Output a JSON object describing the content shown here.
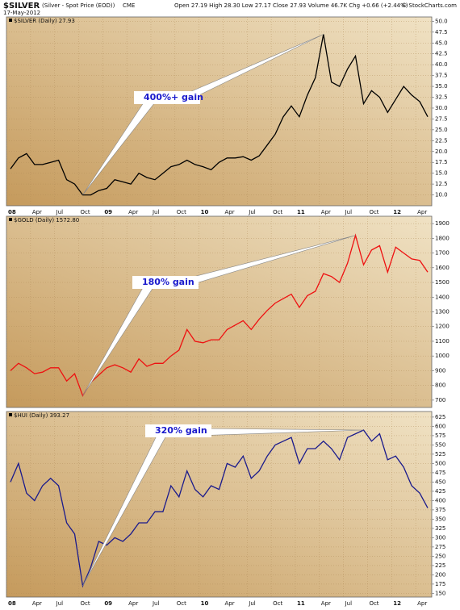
{
  "header": {
    "symbol": "$SILVER",
    "description": "(Silver - Spot Price (EOD))",
    "exchange": "CME",
    "date": "17-May-2012",
    "quote": "Open 27.19 High 28.30 Low 27.17 Close 27.93 Volume 46.7K Chg +0.66 (+2.44%)",
    "credit": "© StockCharts.com"
  },
  "chart_data": [
    {
      "type": "line",
      "title": "$SILVER (Daily) 27.93",
      "color": "#000000",
      "annotation": "400%+ gain",
      "grid": true,
      "categories": [
        "08",
        null,
        null,
        "Apr",
        null,
        null,
        "Jul",
        null,
        null,
        "Oct",
        null,
        null,
        "09",
        null,
        null,
        "Apr",
        null,
        null,
        "Jul",
        null,
        null,
        "Oct",
        null,
        null,
        "10",
        null,
        null,
        "Apr",
        null,
        null,
        "Jul",
        null,
        null,
        "Oct",
        null,
        null,
        "11",
        null,
        null,
        "Apr",
        null,
        null,
        "Jul",
        null,
        null,
        "Oct",
        null,
        null,
        "12",
        null,
        null,
        "Apr",
        null
      ],
      "values": [
        16,
        18.5,
        19.5,
        17,
        17,
        17.5,
        18,
        13.5,
        12.5,
        10,
        10,
        11,
        11.5,
        13.5,
        13,
        12.5,
        15,
        14,
        13.5,
        15,
        16.5,
        17,
        18,
        17,
        16.5,
        15.8,
        17.5,
        18.5,
        18.5,
        18.8,
        18,
        19,
        21.5,
        24,
        28,
        30.5,
        28,
        33,
        37,
        47,
        36,
        35,
        39,
        42,
        31,
        34,
        32.5,
        29,
        32,
        35,
        33,
        31.5,
        28
      ],
      "ylim": [
        7.5,
        51
      ],
      "yticks": [
        {
          "value": 10,
          "label": "10.0"
        },
        12.5,
        {
          "value": 15,
          "label": "15.0"
        },
        17.5,
        {
          "value": 20,
          "label": "20.0"
        },
        22.5,
        {
          "value": 25,
          "label": "25.0"
        },
        27.5,
        {
          "value": 30,
          "label": "30.0"
        },
        32.5,
        {
          "value": 35,
          "label": "35.0"
        },
        37.5,
        {
          "value": 40,
          "label": "40.0"
        },
        42.5,
        {
          "value": 45,
          "label": "45.0"
        },
        47.5,
        {
          "value": 50,
          "label": "50.0"
        }
      ]
    },
    {
      "type": "line",
      "title": "$GOLD (Daily) 1572.80",
      "color": "#ee1111",
      "annotation": "180% gain",
      "grid": true,
      "values": [
        900,
        950,
        920,
        880,
        890,
        920,
        920,
        830,
        880,
        730,
        820,
        870,
        920,
        940,
        920,
        890,
        980,
        930,
        950,
        950,
        1000,
        1040,
        1180,
        1100,
        1090,
        1110,
        1110,
        1180,
        1210,
        1240,
        1180,
        1250,
        1310,
        1360,
        1390,
        1420,
        1330,
        1410,
        1440,
        1560,
        1540,
        1500,
        1630,
        1820,
        1620,
        1720,
        1750,
        1570,
        1740,
        1700,
        1660,
        1650,
        1570
      ],
      "ylim": [
        650,
        1950
      ],
      "yticks": [
        700,
        800,
        900,
        1000,
        1100,
        1200,
        1300,
        1400,
        1500,
        1600,
        1700,
        1800,
        1900
      ]
    },
    {
      "type": "line",
      "title": "$HUI (Daily) 393.27",
      "color": "#1a1a8c",
      "annotation": "320% gain",
      "grid": true,
      "categories": [
        "08",
        null,
        null,
        "Apr",
        null,
        null,
        "Jul",
        null,
        null,
        "Oct",
        null,
        null,
        "09",
        null,
        null,
        "Apr",
        null,
        null,
        "Jul",
        null,
        null,
        "Oct",
        null,
        null,
        "10",
        null,
        null,
        "Apr",
        null,
        null,
        "Jul",
        null,
        null,
        "Oct",
        null,
        null,
        "11",
        null,
        null,
        "Apr",
        null,
        null,
        "Jul",
        null,
        null,
        "Oct",
        null,
        null,
        "12",
        null,
        null,
        "Apr",
        null
      ],
      "values": [
        450,
        500,
        420,
        400,
        440,
        460,
        440,
        340,
        310,
        170,
        220,
        290,
        280,
        300,
        290,
        310,
        340,
        340,
        370,
        370,
        440,
        410,
        480,
        430,
        410,
        440,
        430,
        500,
        490,
        520,
        460,
        480,
        520,
        550,
        560,
        570,
        500,
        540,
        540,
        560,
        540,
        510,
        570,
        580,
        590,
        560,
        580,
        510,
        520,
        490,
        440,
        420,
        380
      ],
      "ylim": [
        140,
        640
      ],
      "yticks": [
        150,
        175,
        200,
        225,
        250,
        275,
        300,
        325,
        350,
        375,
        400,
        425,
        450,
        475,
        500,
        525,
        550,
        575,
        600,
        625
      ]
    }
  ]
}
